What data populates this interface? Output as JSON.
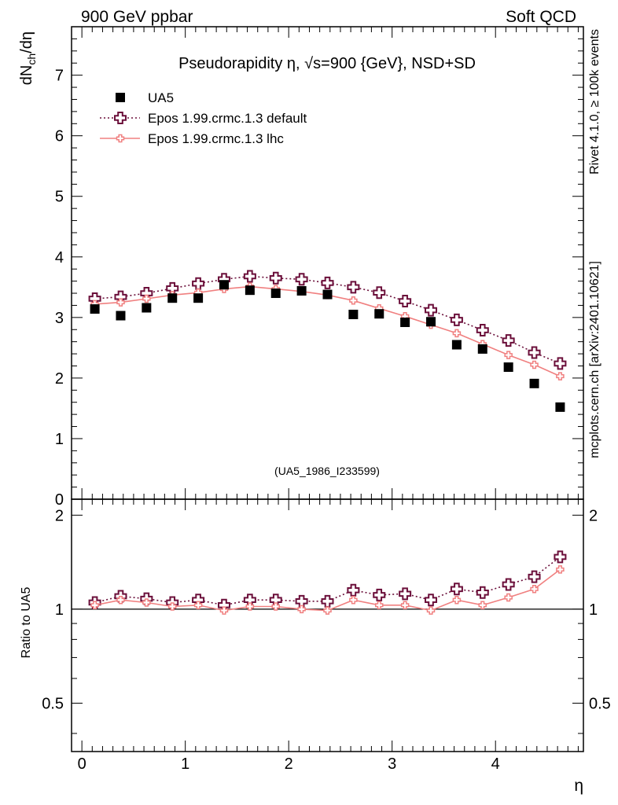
{
  "header": {
    "left": "900 GeV ppbar",
    "right": "Soft QCD"
  },
  "side": {
    "top": "Rivet 4.1.0, ≥ 100k events",
    "bottom": "mcplots.cern.ch [arXiv:2401.10621]"
  },
  "colors": {
    "data": "#000000",
    "default_line": "#6b0f3a",
    "lhc_line": "#f08080",
    "watermark": "#999999"
  },
  "chart_data": [
    {
      "type": "scatter",
      "panel": "main",
      "title": "Pseudorapidity η, √s=900 {GeV}, NSD+SD",
      "ylabel": "dN_ch/dη",
      "xlabel": "",
      "xlim": [
        -0.1,
        4.85
      ],
      "ylim": [
        0,
        7.8
      ],
      "yticks": [
        0,
        1,
        2,
        3,
        4,
        5,
        6,
        7
      ],
      "ytick_labels": [
        "0",
        "1",
        "2",
        "3",
        "4",
        "5",
        "6",
        "7"
      ],
      "watermark": "(UA5_1986_I233599)",
      "x": [
        0.125,
        0.375,
        0.625,
        0.875,
        1.125,
        1.375,
        1.625,
        1.875,
        2.125,
        2.375,
        2.625,
        2.875,
        3.125,
        3.375,
        3.625,
        3.875,
        4.125,
        4.375,
        4.625
      ],
      "series": [
        {
          "name": "UA5",
          "style": "marker",
          "values": [
            3.14,
            3.03,
            3.16,
            3.32,
            3.32,
            3.54,
            3.45,
            3.4,
            3.44,
            3.38,
            3.05,
            3.06,
            2.92,
            2.93,
            2.55,
            2.48,
            2.18,
            1.91,
            1.52
          ]
        },
        {
          "name": "Epos 1.99.crmc.1.3 default",
          "style": "dotted",
          "values": [
            3.31,
            3.34,
            3.4,
            3.48,
            3.56,
            3.63,
            3.68,
            3.65,
            3.63,
            3.57,
            3.5,
            3.41,
            3.27,
            3.12,
            2.96,
            2.79,
            2.62,
            2.42,
            2.24
          ]
        },
        {
          "name": "Epos 1.99.crmc.1.3 lhc",
          "style": "solid",
          "values": [
            3.22,
            3.25,
            3.31,
            3.37,
            3.41,
            3.47,
            3.51,
            3.47,
            3.43,
            3.37,
            3.28,
            3.15,
            3.02,
            2.88,
            2.74,
            2.56,
            2.38,
            2.22,
            2.03
          ]
        }
      ]
    },
    {
      "type": "line",
      "panel": "ratio",
      "ylabel": "Ratio to UA5",
      "xlabel": "η",
      "xlim": [
        -0.1,
        4.85
      ],
      "ylim": [
        0.35,
        2.25
      ],
      "yticks": [
        0.5,
        1,
        2
      ],
      "ytick_labels": [
        "0.5",
        "1",
        "2"
      ],
      "xticks": [
        0,
        1,
        2,
        3,
        4
      ],
      "xtick_labels": [
        "0",
        "1",
        "2",
        "3",
        "4"
      ],
      "reference": 1,
      "x": [
        0.125,
        0.375,
        0.625,
        0.875,
        1.125,
        1.375,
        1.625,
        1.875,
        2.125,
        2.375,
        2.625,
        2.875,
        3.125,
        3.375,
        3.625,
        3.875,
        4.125,
        4.375,
        4.625
      ],
      "series": [
        {
          "name": "Epos 1.99.crmc.1.3 default",
          "style": "dotted",
          "values": [
            1.05,
            1.1,
            1.08,
            1.05,
            1.07,
            1.03,
            1.07,
            1.07,
            1.06,
            1.06,
            1.15,
            1.11,
            1.12,
            1.07,
            1.16,
            1.13,
            1.2,
            1.27,
            1.47
          ]
        },
        {
          "name": "Epos 1.99.crmc.1.3 lhc",
          "style": "solid",
          "values": [
            1.03,
            1.07,
            1.05,
            1.02,
            1.03,
            0.99,
            1.02,
            1.02,
            1.0,
            0.99,
            1.07,
            1.03,
            1.03,
            0.99,
            1.07,
            1.03,
            1.09,
            1.16,
            1.34
          ]
        }
      ]
    }
  ]
}
